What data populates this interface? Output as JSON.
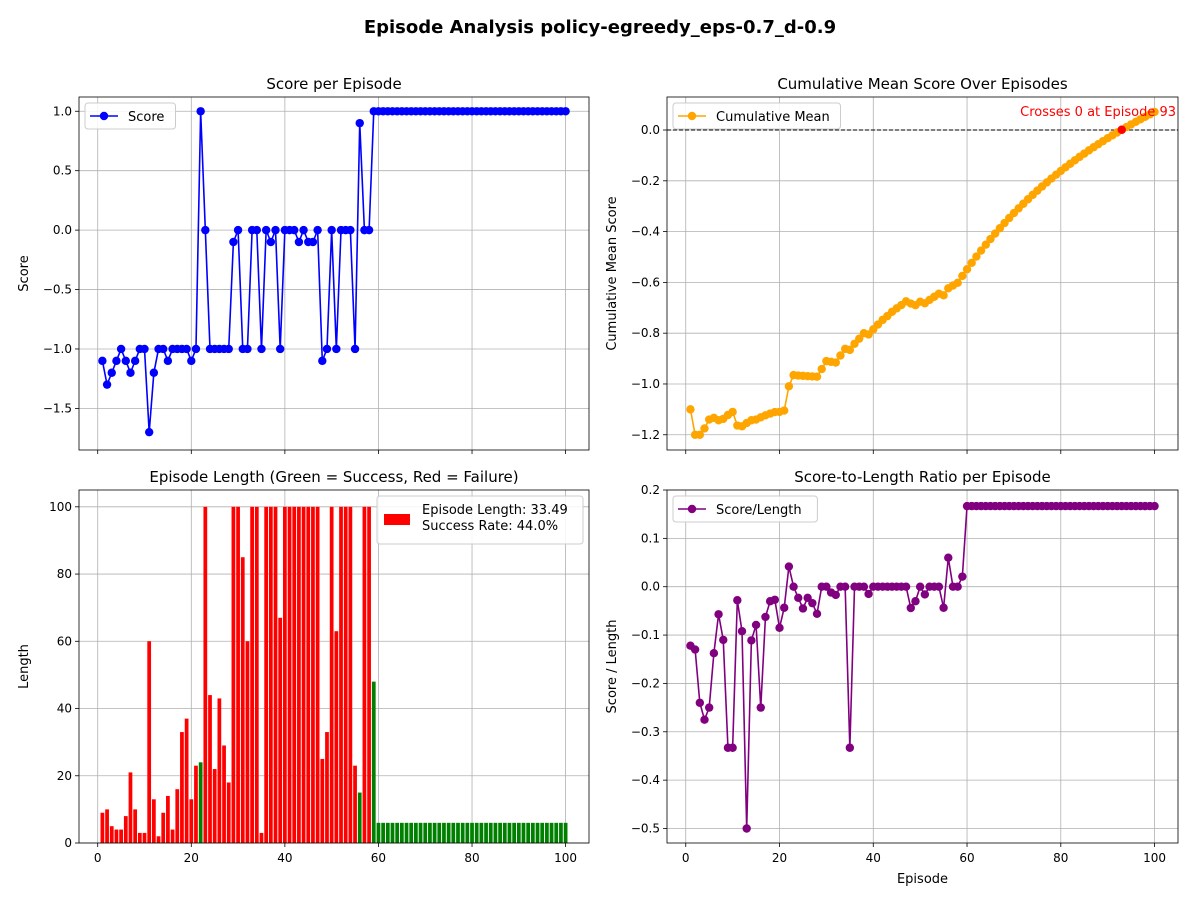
{
  "suptitle": "Episode Analysis policy-egreedy_eps-0.7_d-0.9",
  "chart_data": [
    {
      "type": "line",
      "title": "Score per Episode",
      "xlabel": "",
      "ylabel": "Score",
      "xlim": [
        -4,
        105
      ],
      "ylim": [
        -1.85,
        1.12
      ],
      "xticks": [
        0,
        20,
        40,
        60,
        80,
        100
      ],
      "xtick_labels_visible": false,
      "yticks": [
        -1.5,
        -1.0,
        -0.5,
        0.0,
        0.5,
        1.0
      ],
      "ytick_labels": [
        "−1.5",
        "−1.0",
        "−0.5",
        "0.0",
        "0.5",
        "1.0"
      ],
      "grid": true,
      "legend_position": "upper-left",
      "series": [
        {
          "name": "Score",
          "color": "#0000ff",
          "marker": "circle",
          "x_start": 1,
          "values": [
            -1.1,
            -1.3,
            -1.2,
            -1.1,
            -1.0,
            -1.1,
            -1.2,
            -1.1,
            -1.0,
            -1.0,
            -1.7,
            -1.2,
            -1.0,
            -1.0,
            -1.1,
            -1.0,
            -1.0,
            -1.0,
            -1.0,
            -1.1,
            -1.0,
            1.0,
            0.0,
            -1.0,
            -1.0,
            -1.0,
            -1.0,
            -1.0,
            -0.1,
            0.0,
            -1.0,
            -1.0,
            0.0,
            0.0,
            -1.0,
            0.0,
            -0.1,
            0.0,
            -1.0,
            0.0,
            0.0,
            0.0,
            -0.1,
            0.0,
            -0.1,
            -0.1,
            0.0,
            -1.1,
            -1.0,
            0.0,
            -1.0,
            0.0,
            0.0,
            0.0,
            -1.0,
            0.9,
            0.0,
            0.0,
            1.0,
            1.0,
            1.0,
            1.0,
            1.0,
            1.0,
            1.0,
            1.0,
            1.0,
            1.0,
            1.0,
            1.0,
            1.0,
            1.0,
            1.0,
            1.0,
            1.0,
            1.0,
            1.0,
            1.0,
            1.0,
            1.0,
            1.0,
            1.0,
            1.0,
            1.0,
            1.0,
            1.0,
            1.0,
            1.0,
            1.0,
            1.0,
            1.0,
            1.0,
            1.0,
            1.0,
            1.0,
            1.0,
            1.0,
            1.0,
            1.0,
            1.0
          ]
        }
      ]
    },
    {
      "type": "line",
      "title": "Cumulative Mean Score Over Episodes",
      "xlabel": "",
      "ylabel": "Cumulative Mean Score",
      "xlim": [
        -4,
        105
      ],
      "ylim": [
        -1.26,
        0.13
      ],
      "xticks": [
        0,
        20,
        40,
        60,
        80,
        100
      ],
      "xtick_labels_visible": false,
      "yticks": [
        -1.2,
        -1.0,
        -0.8,
        -0.6,
        -0.4,
        -0.2,
        0.0
      ],
      "ytick_labels": [
        "−1.2",
        "−1.0",
        "−0.8",
        "−0.6",
        "−0.4",
        "−0.2",
        "0.0"
      ],
      "grid": true,
      "legend_position": "upper-left",
      "hline": {
        "y": 0.0,
        "style": "dashed",
        "color": "#000000"
      },
      "annotation": {
        "text": "Crosses 0 at Episode 93",
        "x": 93,
        "y": 0.0,
        "color": "#ff0000"
      },
      "series": [
        {
          "name": "Cumulative Mean",
          "color": "#ffa500",
          "marker": "circle",
          "x_start": 1,
          "values": [
            -1.1,
            -1.2,
            -1.2,
            -1.175,
            -1.14,
            -1.1333,
            -1.1429,
            -1.1375,
            -1.1222,
            -1.11,
            -1.1636,
            -1.1667,
            -1.1538,
            -1.1429,
            -1.14,
            -1.1313,
            -1.1235,
            -1.1167,
            -1.1105,
            -1.11,
            -1.1048,
            -1.0091,
            -0.9652,
            -0.9667,
            -0.968,
            -0.9692,
            -0.9704,
            -0.9714,
            -0.9414,
            -0.91,
            -0.9129,
            -0.9156,
            -0.8879,
            -0.8618,
            -0.8657,
            -0.8417,
            -0.8216,
            -0.8,
            -0.8051,
            -0.785,
            -0.7659,
            -0.7476,
            -0.7326,
            -0.7159,
            -0.7022,
            -0.6891,
            -0.6745,
            -0.6833,
            -0.6898,
            -0.676,
            -0.6824,
            -0.6692,
            -0.6566,
            -0.6444,
            -0.6509,
            -0.6232,
            -0.6123,
            -0.6017,
            -0.5746,
            -0.5483,
            -0.5229,
            -0.4984,
            -0.4746,
            -0.4516,
            -0.4292,
            -0.4076,
            -0.3866,
            -0.3662,
            -0.3464,
            -0.3271,
            -0.3085,
            -0.2903,
            -0.2726,
            -0.2554,
            -0.2387,
            -0.2224,
            -0.2065,
            -0.191,
            -0.1759,
            -0.1611,
            -0.1468,
            -0.1328,
            -0.1192,
            -0.1058,
            -0.0929,
            -0.0802,
            -0.0678,
            -0.0557,
            -0.0438,
            -0.0322,
            -0.0209,
            -0.0098,
            0.001,
            0.0117,
            0.0221,
            0.0323,
            0.0423,
            0.052,
            0.0617,
            0.0711
          ]
        }
      ],
      "highlight_point": {
        "x": 93,
        "y": 0.001,
        "color": "#ff0000"
      }
    },
    {
      "type": "bar",
      "title": "Episode Length (Green = Success, Red = Failure)",
      "xlabel": "",
      "ylabel": "Length",
      "xlim": [
        -4,
        105
      ],
      "ylim": [
        0,
        105
      ],
      "xticks": [
        0,
        20,
        40,
        60,
        80,
        100
      ],
      "yticks": [
        0,
        20,
        40,
        60,
        80,
        100
      ],
      "grid": true,
      "legend_position": "upper-right",
      "legend_text": [
        "Episode Length: 33.49",
        "Success Rate: 44.0%"
      ],
      "success_color": "#008000",
      "failure_color": "#ff0000",
      "x_start": 1,
      "values": [
        9,
        10,
        5,
        4,
        4,
        8,
        21,
        10,
        3,
        3,
        60,
        13,
        2,
        9,
        14,
        4,
        16,
        33,
        37,
        13,
        23,
        24,
        100,
        44,
        22,
        43,
        29,
        18,
        100,
        100,
        85,
        60,
        100,
        100,
        3,
        100,
        100,
        100,
        67,
        100,
        100,
        100,
        100,
        100,
        100,
        100,
        100,
        25,
        33,
        100,
        63,
        100,
        100,
        100,
        23,
        15,
        100,
        100,
        48,
        6,
        6,
        6,
        6,
        6,
        6,
        6,
        6,
        6,
        6,
        6,
        6,
        6,
        6,
        6,
        6,
        6,
        6,
        6,
        6,
        6,
        6,
        6,
        6,
        6,
        6,
        6,
        6,
        6,
        6,
        6,
        6,
        6,
        6,
        6,
        6,
        6,
        6,
        6,
        6,
        6
      ],
      "success": [
        false,
        false,
        false,
        false,
        false,
        false,
        false,
        false,
        false,
        false,
        false,
        false,
        false,
        false,
        false,
        false,
        false,
        false,
        false,
        false,
        false,
        true,
        false,
        false,
        false,
        false,
        false,
        false,
        false,
        false,
        false,
        false,
        false,
        false,
        false,
        false,
        false,
        false,
        false,
        false,
        false,
        false,
        false,
        false,
        false,
        false,
        false,
        false,
        false,
        false,
        false,
        false,
        false,
        false,
        false,
        true,
        false,
        false,
        true,
        true,
        true,
        true,
        true,
        true,
        true,
        true,
        true,
        true,
        true,
        true,
        true,
        true,
        true,
        true,
        true,
        true,
        true,
        true,
        true,
        true,
        true,
        true,
        true,
        true,
        true,
        true,
        true,
        true,
        true,
        true,
        true,
        true,
        true,
        true,
        true,
        true,
        true,
        true,
        true,
        true
      ]
    },
    {
      "type": "line",
      "title": "Score-to-Length Ratio per Episode",
      "xlabel": "Episode",
      "ylabel": "Score / Length",
      "xlim": [
        -4,
        105
      ],
      "ylim": [
        -0.53,
        0.2
      ],
      "xticks": [
        0,
        20,
        40,
        60,
        80,
        100
      ],
      "yticks": [
        -0.5,
        -0.4,
        -0.3,
        -0.2,
        -0.1,
        0.0,
        0.1,
        0.2
      ],
      "ytick_labels": [
        "−0.5",
        "−0.4",
        "−0.3",
        "−0.2",
        "−0.1",
        "0.0",
        "0.1",
        "0.2"
      ],
      "grid": true,
      "legend_position": "upper-left",
      "series": [
        {
          "name": "Score/Length",
          "color": "#800080",
          "marker": "circle",
          "x_start": 1,
          "values": [
            -0.122,
            -0.13,
            -0.24,
            -0.275,
            -0.25,
            -0.1375,
            -0.057,
            -0.11,
            -0.333,
            -0.333,
            -0.028,
            -0.092,
            -0.5,
            -0.111,
            -0.079,
            -0.25,
            -0.0625,
            -0.03,
            -0.027,
            -0.085,
            -0.0435,
            0.0417,
            0.0,
            -0.023,
            -0.045,
            -0.023,
            -0.034,
            -0.056,
            0.0,
            0.0,
            -0.012,
            -0.017,
            0.0,
            0.0,
            -0.333,
            0.0,
            0.0,
            0.0,
            -0.015,
            0.0,
            0.0,
            0.0,
            0.0,
            0.0,
            0.0,
            0.0,
            0.0,
            -0.044,
            -0.03,
            0.0,
            -0.016,
            0.0,
            0.0,
            0.0,
            -0.0435,
            0.06,
            0.0,
            0.0,
            0.0208,
            0.1667,
            0.1667,
            0.1667,
            0.1667,
            0.1667,
            0.1667,
            0.1667,
            0.1667,
            0.1667,
            0.1667,
            0.1667,
            0.1667,
            0.1667,
            0.1667,
            0.1667,
            0.1667,
            0.1667,
            0.1667,
            0.1667,
            0.1667,
            0.1667,
            0.1667,
            0.1667,
            0.1667,
            0.1667,
            0.1667,
            0.1667,
            0.1667,
            0.1667,
            0.1667,
            0.1667,
            0.1667,
            0.1667,
            0.1667,
            0.1667,
            0.1667,
            0.1667,
            0.1667,
            0.1667,
            0.1667,
            0.1667
          ]
        }
      ]
    }
  ]
}
